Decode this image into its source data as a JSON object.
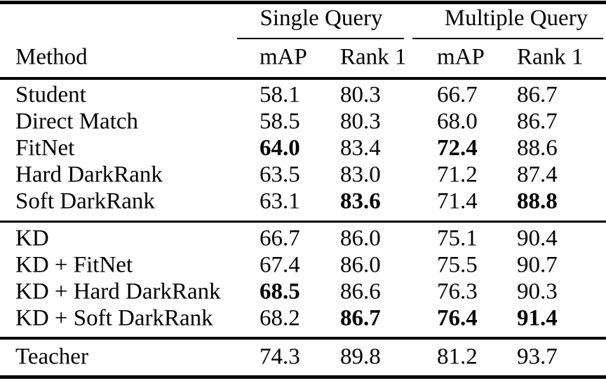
{
  "table": {
    "background_color": "#ffffff",
    "text_color": "#000000",
    "rule_color": "#000000",
    "groups": [
      "Single Query",
      "Multiple Query"
    ],
    "method_header": "Method",
    "sub_headers": [
      "mAP",
      "Rank 1",
      "mAP",
      "Rank 1"
    ],
    "rows": [
      {
        "method": "Student",
        "values": [
          "58.1",
          "80.3",
          "66.7",
          "86.7"
        ]
      },
      {
        "method": "Direct Match",
        "values": [
          "58.5",
          "80.3",
          "68.0",
          "86.7"
        ]
      },
      {
        "method": "FitNet",
        "values": [
          "64.0",
          "83.4",
          "72.4",
          "88.6"
        ]
      },
      {
        "method": "Hard DarkRank",
        "values": [
          "63.5",
          "83.0",
          "71.2",
          "87.4"
        ]
      },
      {
        "method": "Soft DarkRank",
        "values": [
          "63.1",
          "83.6",
          "71.4",
          "88.8"
        ]
      },
      {
        "method": "KD",
        "values": [
          "66.7",
          "86.0",
          "75.1",
          "90.4"
        ]
      },
      {
        "method": "KD + FitNet",
        "values": [
          "67.4",
          "86.0",
          "75.5",
          "90.7"
        ]
      },
      {
        "method": "KD + Hard DarkRank",
        "values": [
          "68.5",
          "86.6",
          "76.3",
          "90.3"
        ]
      },
      {
        "method": "KD + Soft DarkRank",
        "values": [
          "68.2",
          "86.7",
          "76.4",
          "91.4"
        ]
      },
      {
        "method": "Teacher",
        "values": [
          "74.3",
          "89.8",
          "81.2",
          "93.7"
        ]
      }
    ],
    "bold_cells": [
      "2-0",
      "2-2",
      "4-1",
      "4-3",
      "7-0",
      "8-1",
      "8-2",
      "8-3"
    ]
  }
}
